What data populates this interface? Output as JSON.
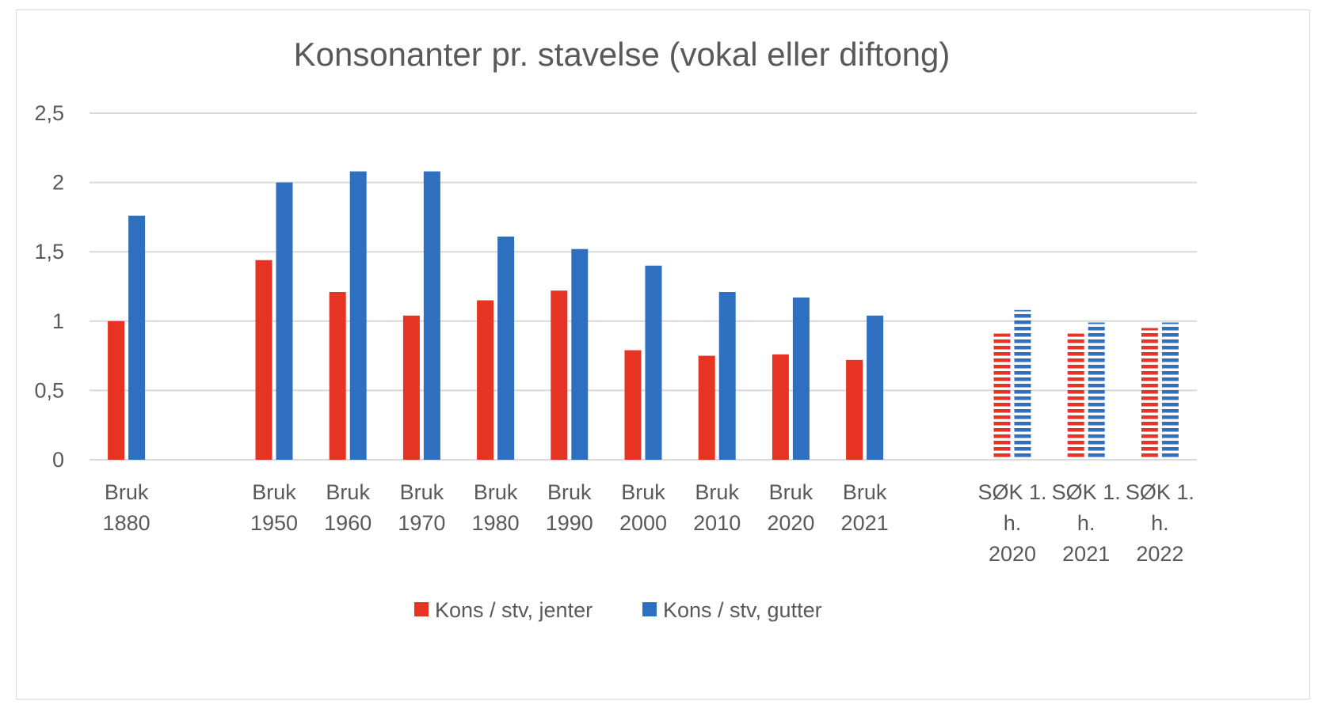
{
  "chart_data": {
    "type": "bar",
    "title": "Konsonanter pr. stavelse (vokal eller diftong)",
    "ylim": [
      0,
      2.5
    ],
    "yticks": [
      "0",
      "0,5",
      "1",
      "1,5",
      "2",
      "2,5"
    ],
    "grid": true,
    "legend_position": "bottom",
    "categories": [
      [
        "Bruk",
        "1880"
      ],
      [
        "",
        ""
      ],
      [
        "Bruk",
        "1950"
      ],
      [
        "Bruk",
        "1960"
      ],
      [
        "Bruk",
        "1970"
      ],
      [
        "Bruk",
        "1980"
      ],
      [
        "Bruk",
        "1990"
      ],
      [
        "Bruk",
        "2000"
      ],
      [
        "Bruk",
        "2010"
      ],
      [
        "Bruk",
        "2020"
      ],
      [
        "Bruk",
        "2021"
      ],
      [
        "",
        ""
      ],
      [
        "SØK 1.",
        "h.",
        "2020"
      ],
      [
        "SØK 1.",
        "h.",
        "2021"
      ],
      [
        "SØK 1.",
        "h.",
        "2022"
      ]
    ],
    "hatched_categories": [
      12,
      13,
      14
    ],
    "series": [
      {
        "name": "Kons / stv, jenter",
        "color": "#e63323",
        "values": [
          1.0,
          null,
          1.44,
          1.21,
          1.04,
          1.15,
          1.22,
          0.79,
          0.75,
          0.76,
          0.72,
          null,
          0.91,
          0.91,
          0.95
        ]
      },
      {
        "name": "Kons / stv, gutter",
        "color": "#2e6fbf",
        "values": [
          1.76,
          null,
          2.0,
          2.08,
          2.08,
          1.61,
          1.52,
          1.4,
          1.21,
          1.17,
          1.04,
          null,
          1.08,
          0.99,
          0.99
        ]
      }
    ]
  }
}
